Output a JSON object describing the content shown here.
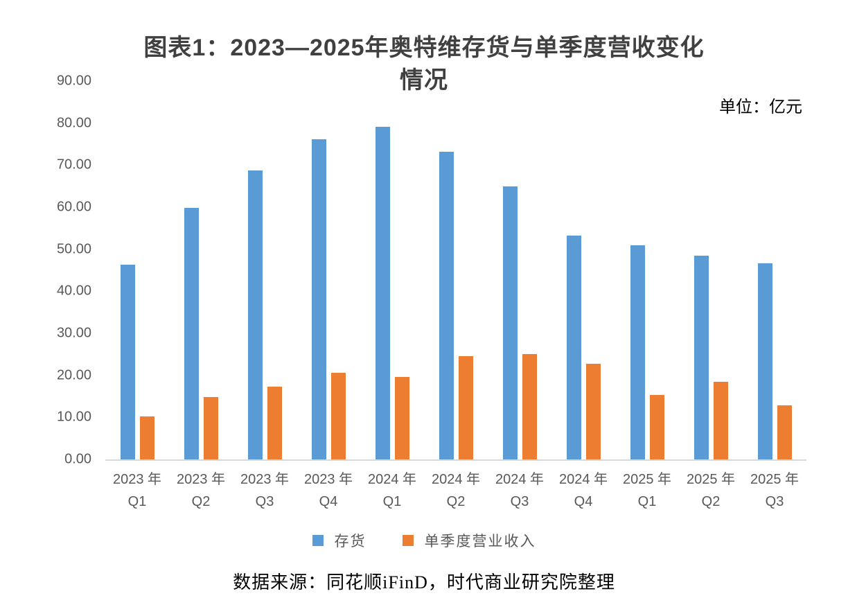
{
  "title": {
    "line1": "图表1：2023—2025年奥特维存货与单季度营收变化",
    "line2": "情况"
  },
  "unit_label": "单位：亿元",
  "source_note": "数据来源：同花顺iFinD，时代商业研究院整理",
  "chart_data": {
    "type": "bar",
    "title": "图表1：2023—2025年奥特维存货与单季度营收变化情况",
    "unit": "亿元",
    "categories": [
      "2023 年\nQ1",
      "2023 年\nQ2",
      "2023 年\nQ3",
      "2023 年\nQ4",
      "2024 年\nQ1",
      "2024 年\nQ2",
      "2024 年\nQ3",
      "2024 年\nQ4",
      "2025 年\nQ1",
      "2025 年\nQ2",
      "2025 年\nQ3"
    ],
    "series": [
      {
        "key": "inventory",
        "name": "存货",
        "color": "#5B9BD5",
        "values": [
          46.4,
          59.9,
          68.7,
          76.2,
          79.2,
          73.2,
          65.0,
          53.3,
          51.0,
          48.4,
          46.7
        ]
      },
      {
        "key": "quarterly-revenue",
        "name": "单季度营业收入",
        "color": "#ED7D31",
        "values": [
          10.3,
          14.8,
          17.3,
          20.6,
          19.6,
          24.6,
          25.1,
          22.8,
          15.3,
          18.5,
          12.9
        ]
      }
    ],
    "xlabel": "",
    "ylabel": "",
    "ylim": [
      0,
      90
    ],
    "ytick_labels": [
      "90.00",
      "80.00",
      "70.00",
      "60.00",
      "50.00",
      "40.00",
      "30.00",
      "20.00",
      "10.00",
      "0.00"
    ],
    "grid": false,
    "legend_position": "bottom"
  }
}
